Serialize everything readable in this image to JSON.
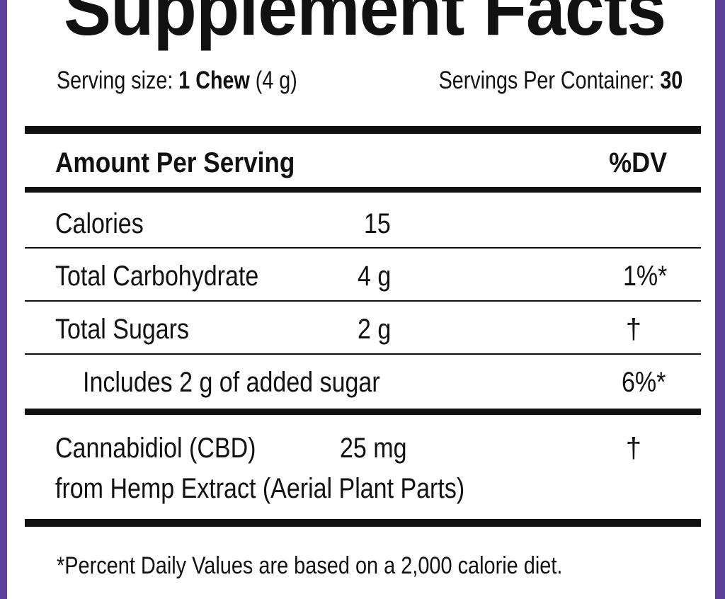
{
  "title": "Supplement Facts",
  "serving": {
    "size_label": "Serving size:",
    "size_value": "1 Chew",
    "size_unit": "(4 g)",
    "container_label": "Servings Per Container:",
    "container_value": "30"
  },
  "table": {
    "header": {
      "amount": "Amount Per Serving",
      "dv": "%DV"
    },
    "rows": [
      {
        "name": "Calories",
        "amount": "15"
      },
      {
        "name": "Total Carbohydrate",
        "amount": "4 g",
        "dv": "1%*"
      },
      {
        "name": "Total Sugars",
        "amount": "2 g",
        "dv": "†"
      },
      {
        "name": "Includes 2 g of added sugar",
        "dv": "6%*"
      },
      {
        "name": "Cannabidiol (CBD)",
        "amount": "25 mg",
        "dv": "†",
        "source": "from Hemp Extract (Aerial Plant Parts)"
      }
    ]
  },
  "footnote": "*Percent Daily Values are based on a 2,000 calorie diet."
}
